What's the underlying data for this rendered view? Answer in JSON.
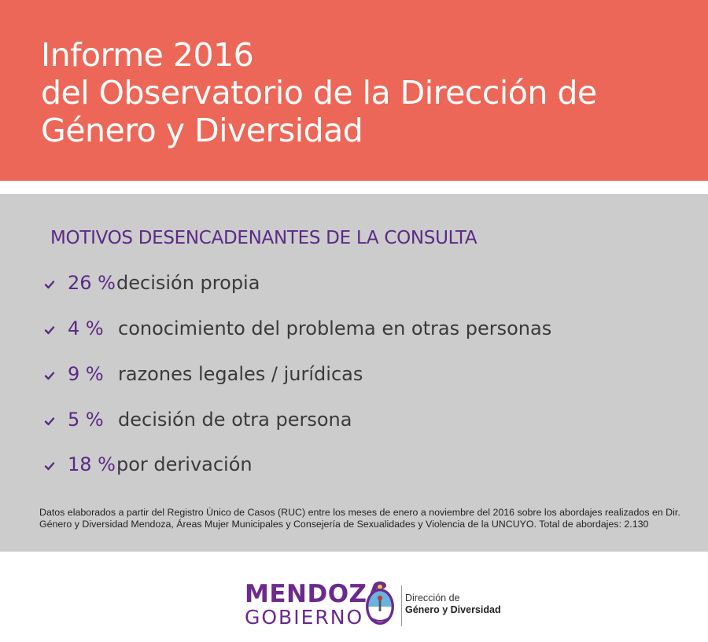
{
  "header": {
    "title_lines": [
      "Informe 2016",
      "del Observatorio de la Dirección de",
      "Género y Diversidad"
    ]
  },
  "section": {
    "heading": "MOTIVOS DESENCADENANTES DE LA CONSULTA",
    "items": [
      {
        "percent": "26 %",
        "label": "decisión propia"
      },
      {
        "percent": "4 %",
        "label": "conocimiento del problema en otras personas"
      },
      {
        "percent": "9 %",
        "label": "razones legales / jurídicas"
      },
      {
        "percent": "5 %",
        "label": "decisión de otra persona"
      },
      {
        "percent": "18 %",
        "label": "por derivación"
      }
    ]
  },
  "footnote": "Datos elaborados a partir  del Registro Único de Casos (RUC) entre los meses de  enero a noviembre del  2016 sobre los abordajes realizados en Dir. Género y Diversidad Mendoza,  Áreas Mujer Municipales y  Consejería de Sexualidades y Violencia de la UNCUYO. Total de abordajes:  2.130",
  "footer": {
    "logo_line1": "MENDOZA",
    "logo_line2": "GOBIERNO",
    "dept_line1": "Dirección de",
    "dept_line2": "Género y Diversidad"
  },
  "colors": {
    "header_bg": "#ec6757",
    "content_bg": "#cccccd",
    "accent_purple": "#5b2a86",
    "logo_purple": "#6b2a8c"
  },
  "icons": {
    "bullet": "check-icon",
    "seal": "mendoza-seal-icon"
  }
}
